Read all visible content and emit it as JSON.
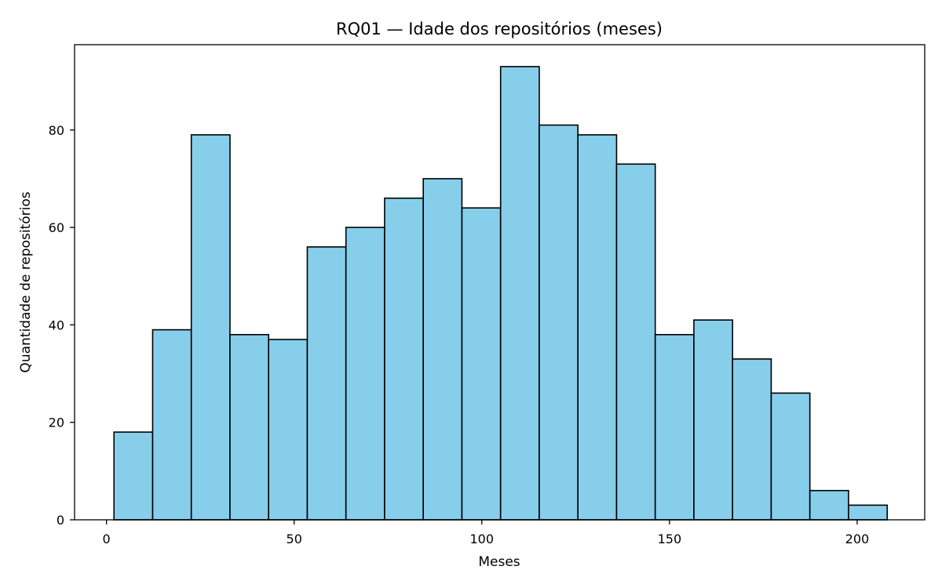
{
  "chart_data": {
    "type": "bar",
    "title": "RQ01 — Idade dos repositórios (meses)",
    "xlabel": "Meses",
    "ylabel": "Quantidade de repositórios",
    "xlim": [
      -8.5,
      218
    ],
    "ylim": [
      0,
      97.5
    ],
    "xticks": [
      0,
      50,
      100,
      150,
      200
    ],
    "yticks": [
      0,
      20,
      40,
      60,
      80
    ],
    "bar_color": "#87CEEB",
    "edge_color": "#000000",
    "grid": false,
    "bins": [
      {
        "x0": 2.0,
        "x1": 12.3,
        "value": 18
      },
      {
        "x0": 12.3,
        "x1": 22.6,
        "value": 39
      },
      {
        "x0": 22.6,
        "x1": 32.9,
        "value": 79
      },
      {
        "x0": 32.9,
        "x1": 43.2,
        "value": 38
      },
      {
        "x0": 43.2,
        "x1": 53.5,
        "value": 37
      },
      {
        "x0": 53.5,
        "x1": 63.8,
        "value": 56
      },
      {
        "x0": 63.8,
        "x1": 74.1,
        "value": 60
      },
      {
        "x0": 74.1,
        "x1": 84.4,
        "value": 66
      },
      {
        "x0": 84.4,
        "x1": 94.7,
        "value": 70
      },
      {
        "x0": 94.7,
        "x1": 105.0,
        "value": 64
      },
      {
        "x0": 105.0,
        "x1": 115.3,
        "value": 93
      },
      {
        "x0": 115.3,
        "x1": 125.6,
        "value": 81
      },
      {
        "x0": 125.6,
        "x1": 135.9,
        "value": 79
      },
      {
        "x0": 135.9,
        "x1": 146.2,
        "value": 73
      },
      {
        "x0": 146.2,
        "x1": 156.5,
        "value": 38
      },
      {
        "x0": 156.5,
        "x1": 166.8,
        "value": 41
      },
      {
        "x0": 166.8,
        "x1": 177.1,
        "value": 33
      },
      {
        "x0": 177.1,
        "x1": 187.4,
        "value": 26
      },
      {
        "x0": 187.4,
        "x1": 197.7,
        "value": 6
      },
      {
        "x0": 197.7,
        "x1": 208.0,
        "value": 3
      }
    ]
  }
}
